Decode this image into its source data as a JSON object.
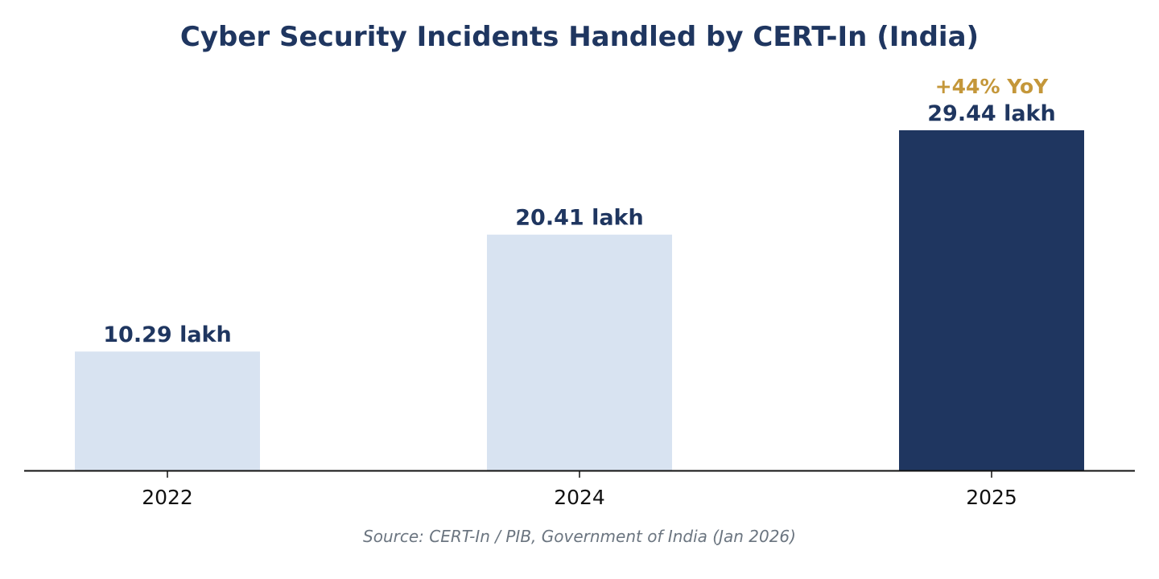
{
  "chart_data": {
    "type": "bar",
    "title": "Cyber Security Incidents Handled by CERT-In (India)",
    "categories": [
      "2022",
      "2024",
      "2025"
    ],
    "values": [
      10.29,
      20.41,
      29.44
    ],
    "value_labels": [
      "10.29 lakh",
      "20.41 lakh",
      "29.44 lakh"
    ],
    "unit": "lakh",
    "annotation": {
      "category": "2025",
      "text": "+44% YoY"
    },
    "ylim": [
      0,
      30.5
    ],
    "grid": false,
    "legend": "none",
    "source": "Source: CERT-In / PIB, Government of India (Jan 2026)",
    "colors": {
      "title": "#1f3660",
      "bar_default": "#d8e3f1",
      "bar_highlight": "#1f3660",
      "value_label": "#1f3660",
      "annotation": "#c4973a",
      "source": "#6b7580",
      "axis": "#111111"
    },
    "highlight_category": "2025"
  }
}
